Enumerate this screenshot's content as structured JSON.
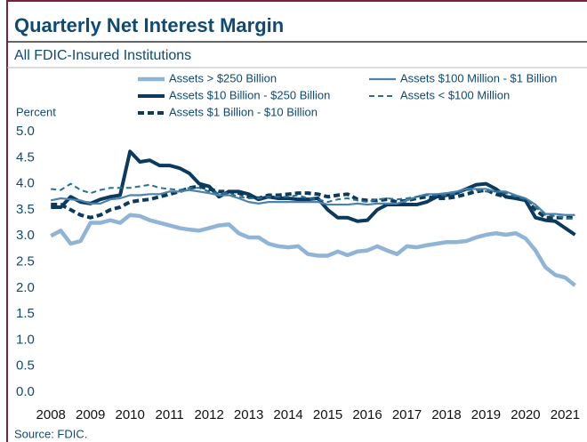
{
  "chart_data": {
    "type": "line",
    "title": "Quarterly Net Interest Margin",
    "subtitle": "All FDIC-Insured Institutions",
    "y_label": "Percent",
    "source": "Source: FDIC.",
    "x": [
      2008,
      2008.25,
      2008.5,
      2008.75,
      2009,
      2009.25,
      2009.5,
      2009.75,
      2010,
      2010.25,
      2010.5,
      2010.75,
      2011,
      2011.25,
      2011.5,
      2011.75,
      2012,
      2012.25,
      2012.5,
      2012.75,
      2013,
      2013.25,
      2013.5,
      2013.75,
      2014,
      2014.25,
      2014.5,
      2014.75,
      2015,
      2015.25,
      2015.5,
      2015.75,
      2016,
      2016.25,
      2016.5,
      2016.75,
      2017,
      2017.25,
      2017.5,
      2017.75,
      2018,
      2018.25,
      2018.5,
      2018.75,
      2019,
      2019.25,
      2019.5,
      2019.75,
      2020,
      2020.25,
      2020.5,
      2020.75,
      2021,
      2021.25
    ],
    "xlim": [
      2007.95,
      2021.35
    ],
    "xticks": [
      2008,
      2009,
      2010,
      2011,
      2012,
      2013,
      2014,
      2015,
      2016,
      2017,
      2018,
      2019,
      2020,
      2021
    ],
    "ylim": [
      0,
      5
    ],
    "yticks": [
      {
        "value": 5,
        "label": "5.0"
      },
      {
        "value": 4.5,
        "label": "4.5"
      },
      {
        "value": 4,
        "label": "4.0"
      },
      {
        "value": 3.5,
        "label": "3.5"
      },
      {
        "value": 3,
        "label": "3.0"
      },
      {
        "value": 2.5,
        "label": "2.5"
      },
      {
        "value": 2,
        "label": "2.0"
      },
      {
        "value": 1.5,
        "label": "1.5"
      },
      {
        "value": 1,
        "label": "1.0"
      },
      {
        "value": 0.5,
        "label": "0.5"
      },
      {
        "value": 0,
        "label": "0.0"
      }
    ],
    "grid": false,
    "series": [
      {
        "name": "Assets > $250 Billion",
        "color": "#8fb4d6",
        "dashed": false,
        "values": [
          3.0,
          3.1,
          2.85,
          2.9,
          3.25,
          3.25,
          3.3,
          3.25,
          3.4,
          3.38,
          3.3,
          3.25,
          3.2,
          3.15,
          3.12,
          3.1,
          3.15,
          3.2,
          3.22,
          3.05,
          2.97,
          2.97,
          2.85,
          2.8,
          2.78,
          2.8,
          2.65,
          2.62,
          2.62,
          2.7,
          2.63,
          2.7,
          2.72,
          2.8,
          2.72,
          2.65,
          2.8,
          2.78,
          2.82,
          2.85,
          2.88,
          2.88,
          2.9,
          2.97,
          3.02,
          3.05,
          3.02,
          3.05,
          2.95,
          2.72,
          2.4,
          2.25,
          2.2,
          2.05
        ]
      },
      {
        "name": "Assets  $10 Billion - $250 Billion",
        "color": "#0b3a5e",
        "dashed": false,
        "values": [
          3.55,
          3.55,
          3.75,
          3.65,
          3.62,
          3.7,
          3.75,
          3.78,
          4.62,
          4.42,
          4.45,
          4.35,
          4.35,
          4.3,
          4.2,
          4.0,
          3.95,
          3.75,
          3.85,
          3.85,
          3.8,
          3.7,
          3.75,
          3.72,
          3.72,
          3.7,
          3.7,
          3.72,
          3.5,
          3.35,
          3.35,
          3.28,
          3.3,
          3.5,
          3.6,
          3.6,
          3.6,
          3.6,
          3.65,
          3.75,
          3.78,
          3.82,
          3.9,
          3.98,
          4.0,
          3.9,
          3.75,
          3.72,
          3.68,
          3.35,
          3.3,
          3.28,
          3.15,
          3.02
        ]
      },
      {
        "name": "Assets  $1 Billion - $10 Billion",
        "color": "#0b3a5e",
        "dashed": true,
        "values": [
          3.6,
          3.6,
          3.5,
          3.4,
          3.35,
          3.4,
          3.5,
          3.55,
          3.65,
          3.68,
          3.7,
          3.75,
          3.8,
          3.85,
          3.92,
          3.95,
          3.9,
          3.85,
          3.85,
          3.82,
          3.75,
          3.72,
          3.78,
          3.78,
          3.8,
          3.82,
          3.82,
          3.8,
          3.75,
          3.78,
          3.8,
          3.7,
          3.68,
          3.68,
          3.7,
          3.65,
          3.68,
          3.72,
          3.75,
          3.72,
          3.72,
          3.75,
          3.8,
          3.85,
          3.88,
          3.8,
          3.75,
          3.72,
          3.7,
          3.5,
          3.35,
          3.35,
          3.35,
          3.35
        ]
      },
      {
        "name": "Assets  $100 Million - $1 Billion",
        "color": "#4d82ad",
        "dashed": false,
        "values": [
          3.68,
          3.72,
          3.7,
          3.68,
          3.62,
          3.62,
          3.7,
          3.72,
          3.78,
          3.78,
          3.8,
          3.8,
          3.85,
          3.85,
          3.88,
          3.85,
          3.82,
          3.78,
          3.78,
          3.72,
          3.65,
          3.62,
          3.65,
          3.65,
          3.65,
          3.65,
          3.65,
          3.65,
          3.6,
          3.6,
          3.6,
          3.62,
          3.6,
          3.62,
          3.62,
          3.62,
          3.68,
          3.75,
          3.8,
          3.8,
          3.82,
          3.85,
          3.9,
          3.9,
          3.9,
          3.85,
          3.85,
          3.78,
          3.72,
          3.6,
          3.42,
          3.42,
          3.4,
          3.4
        ]
      },
      {
        "name": "Assets < $100 Million",
        "color": "#2a7090",
        "dashed": true,
        "values": [
          3.9,
          3.88,
          4.0,
          3.88,
          3.82,
          3.88,
          3.92,
          3.92,
          3.92,
          3.95,
          3.98,
          3.92,
          3.9,
          3.88,
          3.92,
          3.92,
          3.85,
          3.82,
          3.82,
          3.75,
          3.72,
          3.72,
          3.75,
          3.75,
          3.75,
          3.78,
          3.72,
          3.7,
          3.65,
          3.7,
          3.72,
          3.68,
          3.65,
          3.7,
          3.72,
          3.7,
          3.72,
          3.75,
          3.78,
          3.78,
          3.78,
          3.82,
          3.88,
          3.88,
          3.85,
          3.85,
          3.82,
          3.75,
          3.7,
          3.55,
          3.4,
          3.38,
          3.35,
          3.32
        ]
      }
    ]
  }
}
